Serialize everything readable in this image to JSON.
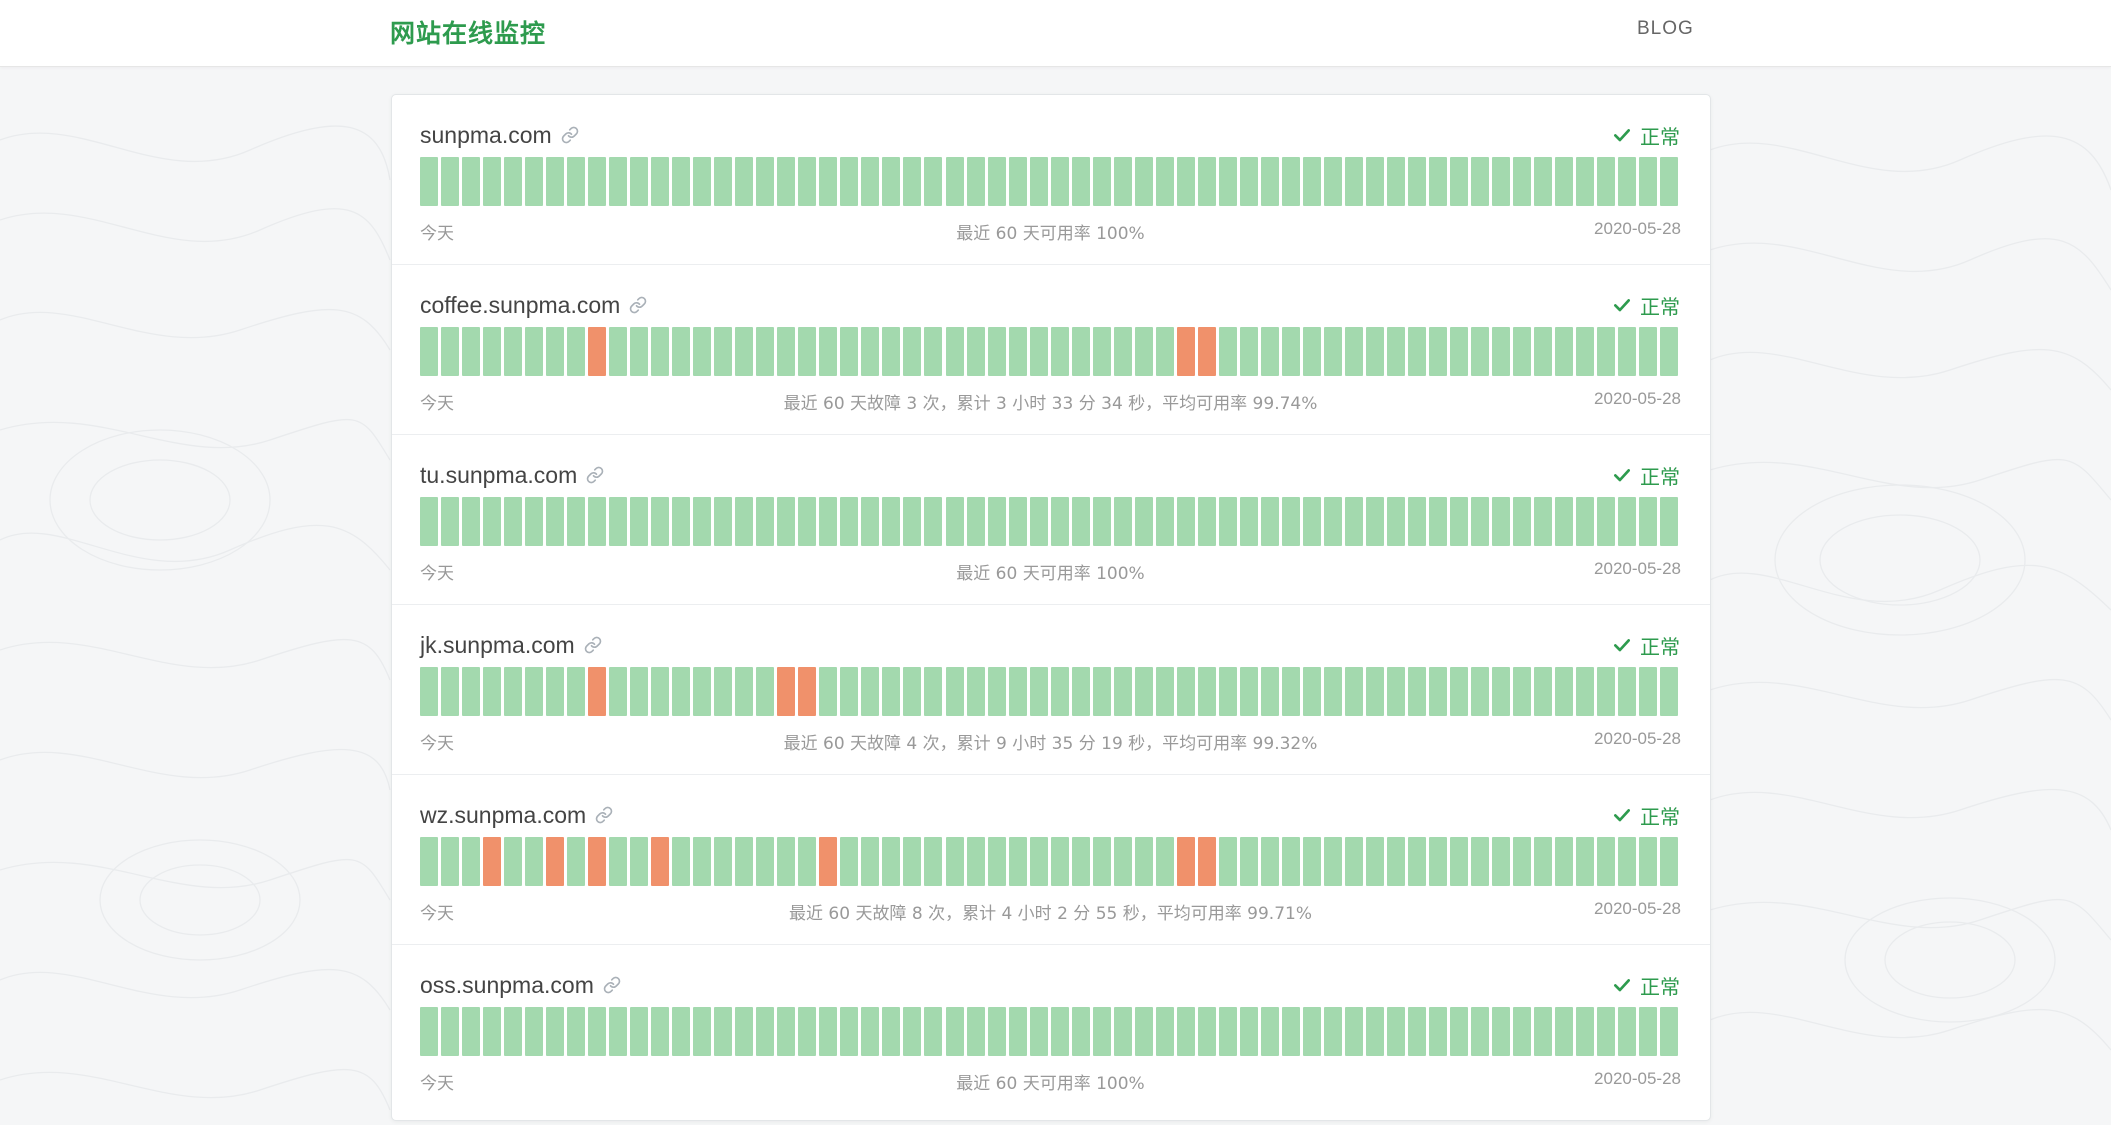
{
  "header": {
    "brand": "网站在线监控",
    "nav_blog": "BLOG"
  },
  "colors": {
    "up": "#a3d9ae",
    "down": "#f0916b",
    "brand": "#2e9b4e"
  },
  "sites": [
    {
      "name": "sunpma.com",
      "status": "正常",
      "left_label": "今天",
      "summary": "最近 60 天可用率 100%",
      "date": "2020-05-28",
      "down_days": []
    },
    {
      "name": "coffee.sunpma.com",
      "status": "正常",
      "left_label": "今天",
      "summary": "最近 60 天故障 3 次，累计 3 小时 33 分 34 秒，平均可用率 99.74%",
      "date": "2020-05-28",
      "down_days": [
        8,
        36,
        37
      ]
    },
    {
      "name": "tu.sunpma.com",
      "status": "正常",
      "left_label": "今天",
      "summary": "最近 60 天可用率 100%",
      "date": "2020-05-28",
      "down_days": []
    },
    {
      "name": "jk.sunpma.com",
      "status": "正常",
      "left_label": "今天",
      "summary": "最近 60 天故障 4 次，累计 9 小时 35 分 19 秒，平均可用率 99.32%",
      "date": "2020-05-28",
      "down_days": [
        8,
        17,
        18
      ]
    },
    {
      "name": "wz.sunpma.com",
      "status": "正常",
      "left_label": "今天",
      "summary": "最近 60 天故障 8 次，累计 4 小时 2 分 55 秒，平均可用率 99.71%",
      "date": "2020-05-28",
      "down_days": [
        3,
        6,
        8,
        11,
        19,
        36,
        37
      ]
    },
    {
      "name": "oss.sunpma.com",
      "status": "正常",
      "left_label": "今天",
      "summary": "最近 60 天可用率 100%",
      "date": "2020-05-28",
      "down_days": []
    }
  ]
}
